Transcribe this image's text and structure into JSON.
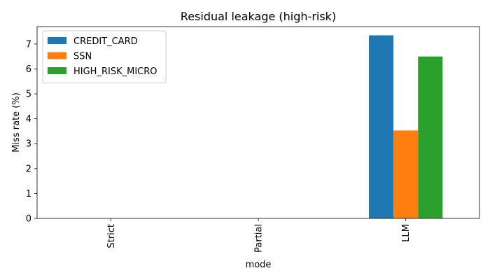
{
  "chart_data": {
    "type": "bar",
    "title": "Residual leakage (high-risk)",
    "xlabel": "mode",
    "ylabel": "Miss rate (%)",
    "categories": [
      "Strict",
      "Partial",
      "LLM"
    ],
    "ylim": [
      0,
      7.7
    ],
    "yticks": [
      0,
      1,
      2,
      3,
      4,
      5,
      6,
      7
    ],
    "grid": false,
    "legend_position": "top-left",
    "series": [
      {
        "name": "CREDIT_CARD",
        "color": "#1f77b4",
        "values": [
          0,
          0,
          7.35
        ]
      },
      {
        "name": "SSN",
        "color": "#ff7f0e",
        "values": [
          0,
          0,
          3.53
        ]
      },
      {
        "name": "HIGH_RISK_MICRO",
        "color": "#2ca02c",
        "values": [
          0,
          0,
          6.5
        ]
      }
    ]
  }
}
